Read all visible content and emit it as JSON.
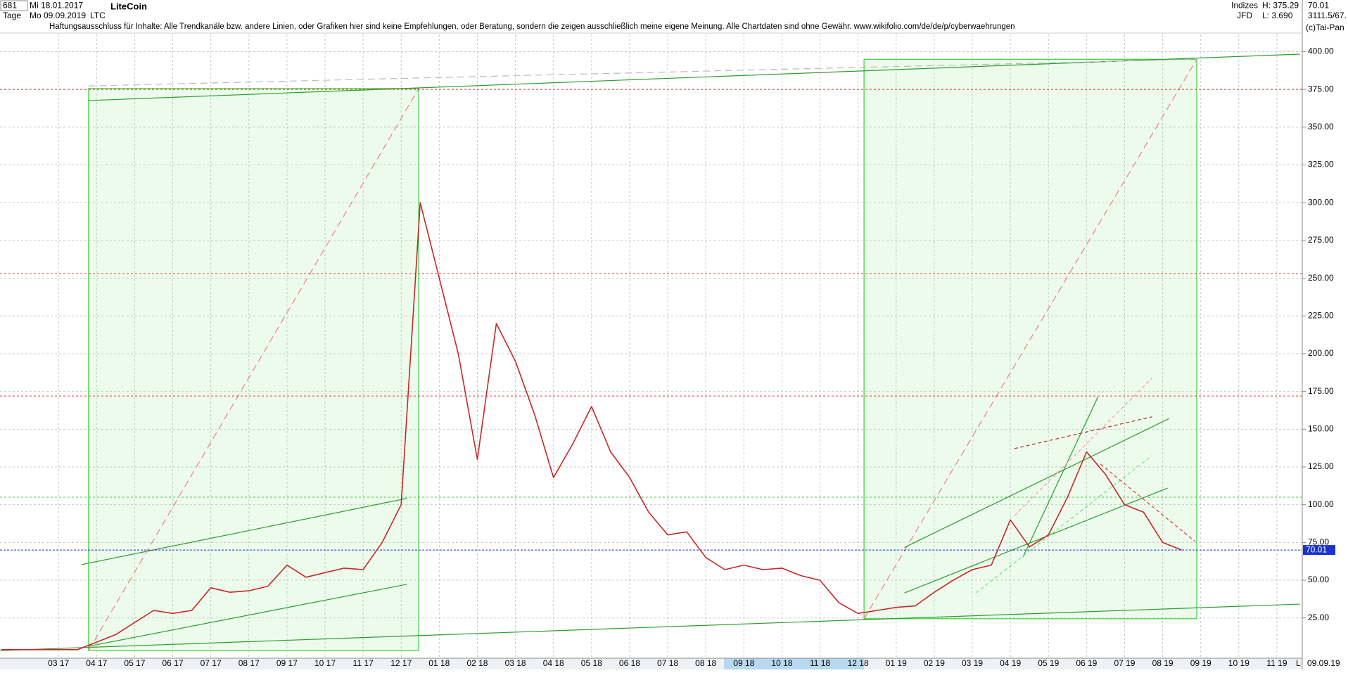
{
  "header": {
    "bars": "681",
    "start": "Mi 18.01.2017",
    "unit": "Tage",
    "end": "Mo 09.09.2019",
    "symbol": "LTC",
    "disclaimer": "Haftungsausschluss für Inhalte: Alle Trendkanäle bzw. andere Linien, oder Grafiken hier sind keine Empfehlungen, oder Beratung, sondern die zeigen ausschließlich meine eigene Meinung. Alle Chartdaten sind ohne Gewähr.  www.wikifolio.com/de/de/p/cyberwaehrungen",
    "market": "Indizes",
    "broker": "JFD",
    "high": "H: 375.29",
    "low": "L: 3.690",
    "volume": "3111.5/67.",
    "copyright": "(c)Tai-Pan",
    "date": "09.09.19",
    "scale": "L"
  },
  "chart_data": {
    "type": "line",
    "title": "LiteCoin",
    "color": "#c62828",
    "categories": [
      null,
      null,
      null,
      "03 17",
      null,
      "04 17",
      null,
      "05 17",
      null,
      "06 17",
      null,
      "07 17",
      null,
      "08 17",
      null,
      "09 17",
      null,
      "10 17",
      null,
      "11 17",
      null,
      "12 17",
      null,
      "01 18",
      null,
      "02 18",
      null,
      "03 18",
      null,
      "04 18",
      null,
      "05 18",
      null,
      "06 18",
      null,
      "07 18",
      null,
      "08 18",
      null,
      "09 18",
      null,
      "10 18",
      null,
      "11 18",
      null,
      "12 18",
      null,
      "01 19",
      null,
      "02 19",
      null,
      "03 19",
      null,
      "04 19",
      null,
      "05 19",
      null,
      "06 19",
      null,
      "07 19",
      null,
      "08 19",
      null,
      "09 19",
      null,
      "10 19",
      null,
      "11 19",
      null
    ],
    "values": [
      4,
      4,
      4,
      4,
      4,
      9,
      14,
      22,
      30,
      28,
      30,
      45,
      42,
      43,
      46,
      60,
      52,
      55,
      58,
      57,
      75,
      100,
      300,
      250,
      200,
      130,
      220,
      195,
      160,
      118,
      140,
      165,
      135,
      118,
      95,
      80,
      82,
      65,
      57,
      60,
      57,
      58,
      53,
      50,
      35,
      28,
      30,
      32,
      33,
      42,
      50,
      57,
      60,
      90,
      72,
      80,
      105,
      135,
      120,
      100,
      95,
      75,
      70,
      null,
      null,
      null,
      null,
      null,
      null
    ],
    "ylim": [
      -1.2,
      411.4
    ],
    "yticks": [
      {
        "value": 25,
        "label": "25.00"
      },
      {
        "value": 50,
        "label": "50.00"
      },
      {
        "value": 75,
        "label": "75.00"
      },
      {
        "value": 100,
        "label": "100.00"
      },
      {
        "value": 125,
        "label": "125.00"
      },
      {
        "value": 150,
        "label": "150.00"
      },
      {
        "value": 175,
        "label": "175.00"
      },
      {
        "value": 200,
        "label": "200.00"
      },
      {
        "value": 225,
        "label": "225.00"
      },
      {
        "value": 250,
        "label": "250.00"
      },
      {
        "value": 275,
        "label": "275.00"
      },
      {
        "value": 300,
        "label": "300.00"
      },
      {
        "value": 325,
        "label": "325.00"
      },
      {
        "value": 350,
        "label": "350.00"
      },
      {
        "value": 375,
        "label": "375.00"
      },
      {
        "value": 400,
        "label": "400.00"
      }
    ],
    "grid": true,
    "levels": [
      {
        "value": 375,
        "color": "#e53935"
      },
      {
        "value": 253,
        "color": "#e53935"
      },
      {
        "value": 172,
        "color": "#e53935"
      },
      {
        "value": 105,
        "color": "#43c443"
      }
    ],
    "current": 70.01,
    "current_color": "#1a33cc"
  }
}
